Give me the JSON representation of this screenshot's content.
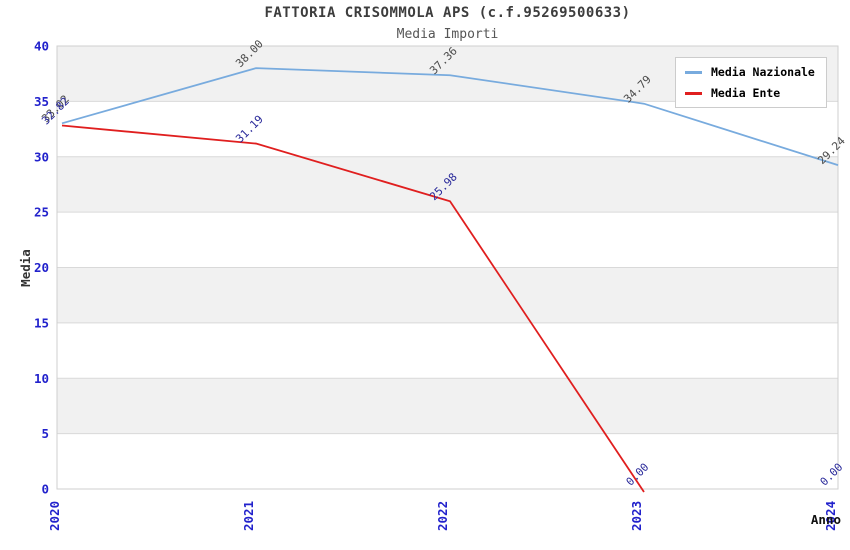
{
  "header": {
    "title": "FATTORIA CRISOMMOLA APS (c.f.95269500633)",
    "subtitle": "Media Importi"
  },
  "chart_data": {
    "type": "line",
    "x": [
      "2020",
      "2021",
      "2022",
      "2023",
      "2024"
    ],
    "xlabel": "Anno",
    "ylabel": "Media",
    "ylim": [
      0,
      40
    ],
    "yticks": [
      0,
      5,
      10,
      15,
      20,
      25,
      30,
      35,
      40
    ],
    "grid": "horizontal bands every 5 units, alternating gray/white",
    "legend_position": "top-right",
    "series": [
      {
        "name": "Media Nazionale",
        "color": "#78abde",
        "label_color": "#4a4a4a",
        "values": [
          33.02,
          38.0,
          37.36,
          34.79,
          29.24
        ],
        "labels": [
          "33.02",
          "38.00",
          "37.36",
          "34.79",
          "29.24"
        ]
      },
      {
        "name": "Media Ente",
        "color": "#e01f1f",
        "label_color": "#29299a",
        "values": [
          32.82,
          31.19,
          25.98,
          0.0,
          0.0
        ],
        "labels": [
          "32.82",
          "31.19",
          "25.98",
          "0.00",
          "0.00"
        ],
        "draw_until_index": 3
      }
    ]
  },
  "colors": {
    "band_gray": "#f1f1f1",
    "grid_line": "#d9d9d9",
    "axis_line": "#b5b5b5",
    "frame": "#cfcfcf",
    "tick": "#2222cc"
  }
}
